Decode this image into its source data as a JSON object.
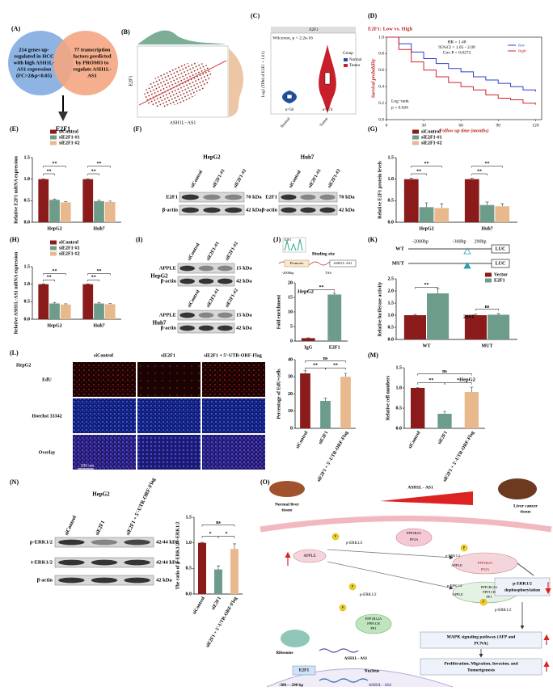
{
  "figure": {
    "A": {
      "label": "(A)",
      "left": [
        "214 genes up-",
        "regulated in HCC",
        "with high ASH1L-",
        "AS1 expression",
        "(FC>2&p<0.05)"
      ],
      "right": [
        "77 transcription",
        "factors predicted",
        "by PROMO to",
        "regulate ASH1L-",
        "AS1"
      ],
      "result": "E2F1"
    },
    "B": {
      "label": "(B)",
      "xlabel": "ASH1L−AS1",
      "ylabel": "E2F1"
    },
    "C": {
      "label": "(C)",
      "title": "E2F1",
      "test": "Wilcoxon, p < 2.2e-16",
      "ylabel": "Log2 (TPM of E2F1 + 1.01)",
      "legend_title": "Group",
      "groups": [
        "Normal",
        "Tumor"
      ],
      "n": [
        "n=50",
        "n=374"
      ]
    },
    "F": {
      "label": "(F)",
      "cells": [
        "HepG2",
        "Huh7"
      ],
      "lanes": [
        "siControl",
        "siE2F1-#1",
        "siE2F1-#2"
      ],
      "proteins": [
        "E2F1",
        "β-actin"
      ],
      "sizes": [
        "70 kDa",
        "42 kDa"
      ]
    },
    "I": {
      "label": "(I)",
      "cells": [
        "HepG2",
        "Huh7"
      ],
      "lanes": [
        "siControl",
        "siE2F1-#1",
        "siE2F1-#2"
      ],
      "proteins": [
        "APPLE",
        "β-actin"
      ],
      "sizes": [
        "15 kDa",
        "42 kDa"
      ]
    },
    "J": {
      "label": "(J)",
      "motif": "E2F1",
      "binding": "Binding site",
      "promoter": "Promoter",
      "gene": "ASH1L-AS1",
      "position": "-2000bp",
      "tss": "TSS"
    },
    "K": {
      "label": "(K)",
      "constructs": [
        "WT",
        "MUT"
      ],
      "positions": [
        "-2000bp",
        "-300bp",
        "290bp"
      ],
      "reporter": "LUC"
    },
    "L": {
      "label": "(L)",
      "cell": "HepG2",
      "columns": [
        "siControl",
        "siE2F1",
        "siE2F1 + 5'-UTR-ORF-Flag"
      ],
      "rows": [
        "EdU",
        "Hoechst 33342",
        "Overlay"
      ],
      "scale": "200 um"
    },
    "N": {
      "label": "(N)",
      "cell": "HepG2",
      "lanes": [
        "siControl",
        "siE2F1",
        "siE2F1 + 5'-UTR-ORF-Flag"
      ],
      "proteins": [
        "p-ERK1/2",
        "t-ERK1/2",
        "β-actin"
      ],
      "sizes": [
        "42/44 kDa",
        "42/44 kDa",
        "42 kDa"
      ]
    },
    "O": {
      "label": "(O)",
      "normal": [
        "Normal liver",
        "tissue"
      ],
      "gradient": "ASH1L - AS1",
      "cancer": [
        "Liver cancer",
        "tissue"
      ],
      "pp2a": [
        "PPP2R2A",
        "PP2A"
      ],
      "pp2a_bound": [
        "PPP2R2A",
        "PP2A"
      ],
      "pp1": [
        "PPP1R12A",
        "PPP1CB",
        "PP1"
      ],
      "pp1_bound": [
        "PPP1R12A",
        "PPP1CB",
        "PP1"
      ],
      "perk": [
        "p-ERK1/2",
        "p-ERK1/2",
        "p-ERK1/2",
        "p-ERK1/2",
        "p-ERK1/2"
      ],
      "apple": [
        "APPLE",
        "APPLE",
        "APPLE"
      ],
      "phospho": [
        "P",
        "P",
        "P",
        "P",
        "P"
      ],
      "dephos": [
        "p-ERK1/2",
        "dephosphorylation"
      ],
      "mapk": [
        "MAPK signaling pathway (AFP and",
        "PCNA)"
      ],
      "outcome": [
        "Proliferation, Migration, Invasion, and",
        "Tumorigenesis"
      ],
      "ribosome": "Ribosome",
      "transcript": "ASH1L - AS1",
      "tf": "E2F1",
      "site": "-300 ~ -290 bp",
      "nucleus": "Nucleus",
      "gene": "ASH1L - AS1"
    }
  },
  "chart_data": [
    {
      "type": "line",
      "label": "(D)",
      "title": "E2F1: Low vs. High",
      "stats": [
        "HR = 1.48",
        "95%CI = 1.05 - 2.09",
        "Cox P = 0.0272"
      ],
      "test": [
        "Log−rank",
        "p = 0.026"
      ],
      "xlabel": "Follow up time (months)",
      "ylabel": "Survival probability",
      "x": [
        0,
        10,
        20,
        30,
        40,
        50,
        60,
        70,
        80,
        90,
        100,
        110,
        120
      ],
      "series": [
        {
          "name": "low",
          "color": "#2b3fcf",
          "values": [
            1,
            0.92,
            0.82,
            0.74,
            0.68,
            0.62,
            0.58,
            0.52,
            0.48,
            0.44,
            0.4,
            0.36,
            0.34
          ]
        },
        {
          "name": "high",
          "color": "#d4202a",
          "values": [
            1,
            0.85,
            0.7,
            0.6,
            0.52,
            0.45,
            0.4,
            0.36,
            0.3,
            0.26,
            0.24,
            0.2,
            0.18
          ]
        }
      ],
      "xlim": [
        0,
        125
      ],
      "ylim": [
        0,
        1
      ],
      "xticks": [
        0,
        30,
        60,
        90,
        120
      ],
      "yticks": [
        {
          "value": 0,
          "label": "0.0"
        },
        0.2,
        0.4,
        0.6,
        0.8,
        {
          "value": 1,
          "label": "1.0"
        }
      ]
    },
    {
      "type": "bar",
      "label": "(E)",
      "ylabel": "Relative E2F1 mRNA expression",
      "categories": [
        "HepG2",
        "Huh7"
      ],
      "series": [
        {
          "name": "siControl",
          "color": "#8b1a1a",
          "values": [
            1,
            1
          ],
          "errors": [
            0.01,
            0.01
          ]
        },
        {
          "name": "siE2F1-#1",
          "color": "#6e9c8a",
          "values": [
            0.52,
            0.49
          ],
          "errors": [
            0.02,
            0.02
          ]
        },
        {
          "name": "siE2F1-#2",
          "color": "#e9b98e",
          "values": [
            0.46,
            0.47
          ],
          "errors": [
            0.02,
            0.02
          ]
        }
      ],
      "ylim": [
        0,
        1.5
      ],
      "yticks": [
        {
          "value": 0,
          "label": "0.0"
        },
        0.5,
        {
          "value": 1,
          "label": "1.0"
        },
        1.5
      ],
      "annotations": [
        "**",
        "**",
        "**",
        "**"
      ]
    },
    {
      "type": "bar",
      "label": "(G)",
      "ylabel": "Relative E2F1 protein levels",
      "categories": [
        "HepG2",
        "Huh7"
      ],
      "series": [
        {
          "name": "siControl",
          "color": "#8b1a1a",
          "values": [
            1,
            1
          ],
          "errors": [
            0.02,
            0.02
          ]
        },
        {
          "name": "siE2F1-#1",
          "color": "#6e9c8a",
          "values": [
            0.35,
            0.4
          ],
          "errors": [
            0.1,
            0.07
          ]
        },
        {
          "name": "siE2F1-#2",
          "color": "#e9b98e",
          "values": [
            0.33,
            0.37
          ],
          "errors": [
            0.1,
            0.06
          ]
        }
      ],
      "ylim": [
        0,
        1.5
      ],
      "yticks": [
        {
          "value": 0,
          "label": "0.0"
        },
        0.5,
        {
          "value": 1,
          "label": "1.0"
        },
        1.5
      ],
      "annotations": [
        "**",
        "**",
        "**",
        "**"
      ]
    },
    {
      "type": "bar",
      "label": "(H)",
      "ylabel": "Relative ASH1L-AS1 mRNA expression",
      "categories": [
        "HepG2",
        "Huh7"
      ],
      "series": [
        {
          "name": "siControl",
          "color": "#8b1a1a",
          "values": [
            1,
            1
          ],
          "errors": [
            0.01,
            0.01
          ]
        },
        {
          "name": "siE2F1-#1",
          "color": "#6e9c8a",
          "values": [
            0.45,
            0.45
          ],
          "errors": [
            0.03,
            0.03
          ]
        },
        {
          "name": "siE2F1-#2",
          "color": "#e9b98e",
          "values": [
            0.42,
            0.43
          ],
          "errors": [
            0.02,
            0.02
          ]
        }
      ],
      "ylim": [
        0,
        1.5
      ],
      "yticks": [
        {
          "value": 0,
          "label": "0.0"
        },
        0.5,
        {
          "value": 1,
          "label": "1.0"
        },
        1.5
      ],
      "annotations": [
        "**",
        "**",
        "**",
        "**"
      ]
    },
    {
      "type": "bar",
      "ylabel": "Fold enrichment",
      "note": "HepG2",
      "categories": [
        "IgG",
        "E2F1"
      ],
      "series": [
        {
          "colors": [
            "#8b1a1a",
            "#6e9c8a"
          ],
          "values": [
            1,
            16
          ],
          "errors": [
            0.1,
            0.5
          ]
        }
      ],
      "ylim": [
        0,
        20
      ],
      "yticks": [
        0,
        5,
        10,
        15,
        20
      ],
      "annotations": [
        "**"
      ]
    },
    {
      "type": "bar",
      "ylabel": "Relative luciferase activity",
      "note": "293T",
      "categories": [
        "WT",
        "MUT"
      ],
      "series": [
        {
          "name": "Vector",
          "color": "#8b1a1a",
          "values": [
            1,
            1
          ],
          "errors": [
            0.03,
            0.04
          ]
        },
        {
          "name": "E2F1",
          "color": "#6e9c8a",
          "values": [
            1.9,
            1.02
          ],
          "errors": [
            0.2,
            0.05
          ]
        }
      ],
      "ylim": [
        0,
        2.5
      ],
      "yticks": [
        {
          "value": 0,
          "label": "0.0"
        },
        0.5,
        {
          "value": 1,
          "label": "1.0"
        },
        1.5,
        {
          "value": 2,
          "label": "2.0"
        },
        2.5
      ],
      "annotations": [
        "**",
        "ns"
      ]
    },
    {
      "type": "bar",
      "ylabel": "Percentage of EdU+cells",
      "categories": [
        "siControl",
        "siE2F1",
        "siE2F1 + 5'-UTR-ORF-Flag"
      ],
      "series": [
        {
          "colors": [
            "#8b1a1a",
            "#6e9c8a",
            "#e9b98e"
          ],
          "values": [
            32,
            16,
            30
          ],
          "errors": [
            1.5,
            1.5,
            2
          ]
        }
      ],
      "ylim": [
        0,
        40
      ],
      "yticks": [
        0,
        10,
        20,
        30,
        40
      ],
      "annotations": [
        "ns",
        "**",
        "**"
      ]
    },
    {
      "type": "bar",
      "label": "(M)",
      "ylabel": "Relative cell numbers",
      "note": "HepG2",
      "categories": [
        "siControl",
        "siE2F1",
        "siE2F1 + 5'-UTR-ORF-Flag"
      ],
      "series": [
        {
          "colors": [
            "#8b1a1a",
            "#6e9c8a",
            "#e9b98e"
          ],
          "values": [
            1,
            0.36,
            0.9
          ],
          "errors": [
            0.01,
            0.06,
            0.12
          ]
        }
      ],
      "ylim": [
        0,
        1.5
      ],
      "yticks": [
        {
          "value": 0,
          "label": "0.0"
        },
        0.5,
        {
          "value": 1,
          "label": "1.0"
        },
        1.5
      ],
      "annotations": [
        "ns",
        "**",
        "*"
      ]
    },
    {
      "type": "bar",
      "ylabel": "The ratio of p-ERK1/2/t-ERK1/2",
      "categories": [
        "siControl",
        "siE2F1",
        "siE2F1 + 5'-UTR-ORF-Flag"
      ],
      "series": [
        {
          "colors": [
            "#8b1a1a",
            "#6e9c8a",
            "#e9b98e"
          ],
          "values": [
            1,
            0.48,
            0.88
          ],
          "errors": [
            0.01,
            0.07,
            0.1
          ]
        }
      ],
      "ylim": [
        0,
        1.5
      ],
      "yticks": [
        {
          "value": 0,
          "label": "0.0"
        },
        0.5,
        {
          "value": 1,
          "label": "1.0"
        },
        1.5
      ],
      "annotations": [
        "ns",
        "*",
        "*"
      ]
    }
  ]
}
